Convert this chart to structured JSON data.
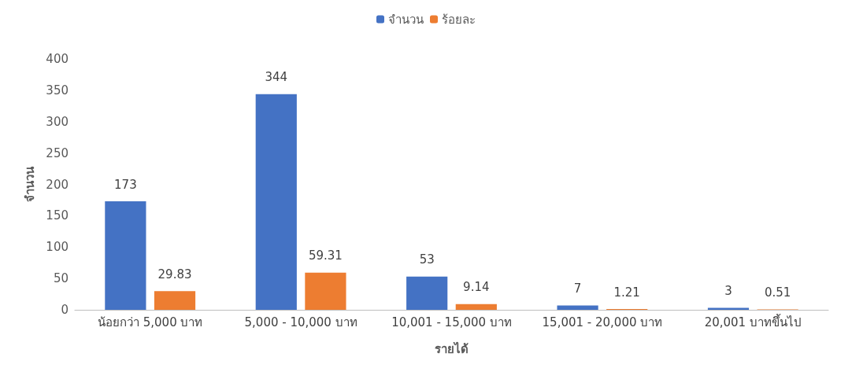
{
  "chart_data": {
    "type": "bar",
    "xlabel": "รายได้",
    "ylabel": "จำนวน",
    "categories": [
      "น้อยกว่า 5,000 บาท",
      "5,000 - 10,000 บาท",
      "10,001 - 15,000 บาท",
      "15,001 - 20,000 บาท",
      "20,001 บาทขึ้นไป"
    ],
    "series": [
      {
        "name": "จำนวน",
        "color": "#4472c4",
        "values": [
          173,
          344,
          53,
          7,
          3
        ]
      },
      {
        "name": "ร้อยละ",
        "color": "#ed7d31",
        "values": [
          29.83,
          59.31,
          9.14,
          1.21,
          0.51
        ]
      }
    ],
    "ylim": [
      0,
      400
    ],
    "yticks": [
      0,
      50,
      100,
      150,
      200,
      250,
      300,
      350,
      400
    ],
    "data_labels": true,
    "legend": "top",
    "grid": false
  }
}
